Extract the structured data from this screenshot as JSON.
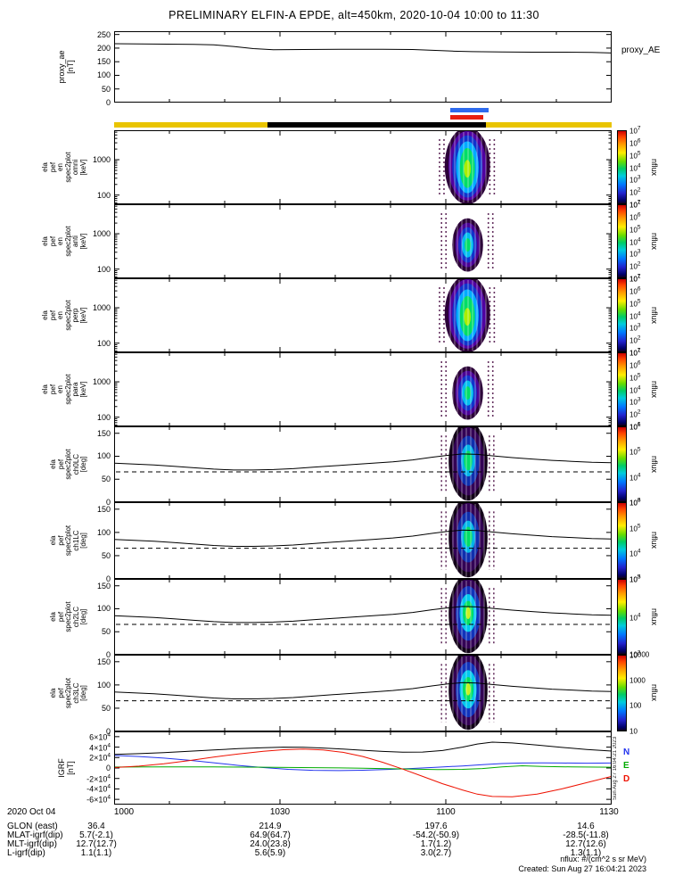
{
  "header": {
    "title": "PRELIMINARY ELFIN-A EPDE, alt=450km, 2020-10-04 10:00 to 11:30"
  },
  "footer": {
    "date": "2020 Oct 04",
    "rows": [
      {
        "label": "GLON (east)",
        "values": [
          "36.4",
          "214.9",
          "197.6",
          "14.6"
        ]
      },
      {
        "label": "MLAT-igrf(dip)",
        "values": [
          "5.7(-2.1)",
          "64.9(64.7)",
          "-54.2(-50.9)",
          "-28.5(-11.8)"
        ]
      },
      {
        "label": "MLT-igrf(dip)",
        "values": [
          "12.7(12.7)",
          "24.0(23.8)",
          "1.7(1.2)",
          "12.7(12.6)"
        ]
      },
      {
        "label": "L-igrf(dip)",
        "values": [
          "1.1(1.1)",
          "5.6(5.9)",
          "3.0(2.7)",
          "1.3(1.1)"
        ]
      }
    ],
    "notes": [
      "nflux: #/(cm^2 s sr MeV)",
      "Created: Sun Aug 27 16:04:21 2023"
    ]
  },
  "chart_data": {
    "type": "multi-panel time-series and spectrograms",
    "title": "PRELIMINARY ELFIN-A EPDE, alt=450km, 2020-10-04 10:00 to 11:30",
    "x_axis": {
      "ticks": [
        "1000",
        "1030",
        "1100",
        "1130"
      ],
      "range_minutes": 90
    },
    "lc_curve": {
      "x": [
        0,
        0.04,
        0.08,
        0.12,
        0.16,
        0.2,
        0.24,
        0.28,
        0.32,
        0.36,
        0.4,
        0.44,
        0.48,
        0.52,
        0.56,
        0.6,
        0.64,
        0.67,
        0.7,
        0.73,
        0.76,
        0.8,
        0.84,
        0.88,
        0.92,
        0.96,
        1
      ],
      "y": [
        85,
        83,
        81,
        78,
        75,
        72,
        70,
        70,
        71,
        73,
        76,
        79,
        82,
        85,
        88,
        92,
        98,
        102,
        105,
        104,
        101,
        97,
        94,
        91,
        89,
        87,
        86
      ],
      "dashed_y": 66
    },
    "panels": [
      {
        "id": "proxy_ae",
        "kind": "line",
        "ylabel_lines": [
          "proxy_ae",
          "[nT]"
        ],
        "right_label": "proxy_AE",
        "yrange": [
          0,
          262
        ],
        "yticks": [
          {
            "v": 0,
            "label": "0"
          },
          {
            "v": 50,
            "label": "50"
          },
          {
            "v": 100,
            "label": "100"
          },
          {
            "v": 150,
            "label": "150"
          },
          {
            "v": 200,
            "label": "200"
          },
          {
            "v": 250,
            "label": "250"
          }
        ],
        "series": [
          {
            "name": "proxy_AE",
            "color": "#000000",
            "x": [
              0,
              0.08,
              0.16,
              0.2,
              0.24,
              0.28,
              0.32,
              0.38,
              0.46,
              0.54,
              0.6,
              0.64,
              0.68,
              0.72,
              0.78,
              0.84,
              0.9,
              0.96,
              1
            ],
            "y": [
              216,
              215,
              214,
              212,
              206,
              198,
              194,
              195,
              196,
              196,
              195,
              192,
              189,
              187,
              186,
              185,
              185,
              184,
              182
            ]
          }
        ]
      },
      {
        "id": "zone-strip",
        "kind": "strip",
        "segments": [
          {
            "x0": 0,
            "x1": 0.308,
            "color": "#e9c400"
          },
          {
            "x0": 0.308,
            "x1": 0.747,
            "color": "#000000"
          },
          {
            "x0": 0.747,
            "x1": 1,
            "color": "#e9c400"
          }
        ],
        "markers": [
          {
            "x0": 0.676,
            "x1": 0.753,
            "color": "#2e6bee",
            "row": 0
          },
          {
            "x0": 0.676,
            "x1": 0.742,
            "color": "#e82010",
            "row": 1
          }
        ]
      },
      {
        "id": "spec-omni",
        "kind": "spec",
        "ylabel_lines": [
          "ela",
          "pef",
          "en",
          "spec2plot",
          "omni",
          "[keV]"
        ],
        "yscale": "log",
        "yrange": [
          55,
          6800
        ],
        "yticks": [
          {
            "v": 100,
            "label": "100"
          },
          {
            "v": 1000,
            "label": "1000"
          }
        ],
        "colorbar": {
          "labels": [
            "10^7",
            "10^6",
            "10^5",
            "10^4",
            "10^3",
            "10^2",
            "10^1"
          ],
          "title": "nflux"
        },
        "burst": {
          "x0": 0.672,
          "x1": 0.748,
          "strength": "strong"
        }
      },
      {
        "id": "spec-anti",
        "kind": "spec",
        "ylabel_lines": [
          "ela",
          "pef",
          "en",
          "spec2plot",
          "anti",
          "[keV]"
        ],
        "yscale": "log",
        "yrange": [
          55,
          6800
        ],
        "yticks": [
          {
            "v": 100,
            "label": "100"
          },
          {
            "v": 1000,
            "label": "1000"
          }
        ],
        "colorbar": {
          "labels": [
            "10^7",
            "10^6",
            "10^5",
            "10^4",
            "10^3",
            "10^2",
            "10^1"
          ],
          "title": "nflux"
        },
        "burst": {
          "x0": 0.676,
          "x1": 0.745,
          "strength": "weak"
        }
      },
      {
        "id": "spec-perp",
        "kind": "spec",
        "ylabel_lines": [
          "ela",
          "pef",
          "en",
          "spec2plot",
          "perp",
          "[keV]"
        ],
        "yscale": "log",
        "yrange": [
          55,
          6800
        ],
        "yticks": [
          {
            "v": 100,
            "label": "100"
          },
          {
            "v": 1000,
            "label": "1000"
          }
        ],
        "colorbar": {
          "labels": [
            "10^7",
            "10^6",
            "10^5",
            "10^4",
            "10^3",
            "10^2",
            "10^1"
          ],
          "title": "nflux"
        },
        "burst": {
          "x0": 0.672,
          "x1": 0.748,
          "strength": "strong"
        }
      },
      {
        "id": "spec-para",
        "kind": "spec",
        "ylabel_lines": [
          "ela",
          "pef",
          "en",
          "spec2plot",
          "para",
          "[keV]"
        ],
        "yscale": "log",
        "yrange": [
          55,
          6800
        ],
        "yticks": [
          {
            "v": 100,
            "label": "100"
          },
          {
            "v": 1000,
            "label": "1000"
          }
        ],
        "colorbar": {
          "labels": [
            "10^7",
            "10^6",
            "10^5",
            "10^4",
            "10^3",
            "10^2",
            "10^1"
          ],
          "title": "nflux"
        },
        "burst": {
          "x0": 0.676,
          "x1": 0.745,
          "strength": "weak"
        }
      },
      {
        "id": "spec-ch0LC",
        "kind": "lc",
        "ylabel_lines": [
          "ela",
          "pef",
          "spec2plot",
          "ch0LC",
          "[deg]"
        ],
        "yrange": [
          0,
          165
        ],
        "yticks": [
          {
            "v": 0,
            "label": "0"
          },
          {
            "v": 50,
            "label": "50"
          },
          {
            "v": 100,
            "label": "100"
          },
          {
            "v": 150,
            "label": "150"
          }
        ],
        "colorbar": {
          "labels": [
            "10^6",
            "10^5",
            "10^4",
            "10^3"
          ],
          "title": "nflux"
        },
        "burst": {
          "x0": 0.676,
          "x1": 0.747,
          "strength": "lc"
        }
      },
      {
        "id": "spec-ch1LC",
        "kind": "lc",
        "ylabel_lines": [
          "ela",
          "pef",
          "spec2plot",
          "ch1LC",
          "[deg]"
        ],
        "yrange": [
          0,
          165
        ],
        "yticks": [
          {
            "v": 0,
            "label": "0"
          },
          {
            "v": 50,
            "label": "50"
          },
          {
            "v": 100,
            "label": "100"
          },
          {
            "v": 150,
            "label": "150"
          }
        ],
        "colorbar": {
          "labels": [
            "10^6",
            "10^5",
            "10^4",
            "10^3"
          ],
          "title": "nflux"
        },
        "burst": {
          "x0": 0.676,
          "x1": 0.747,
          "strength": "lc"
        }
      },
      {
        "id": "spec-ch2LC",
        "kind": "lc",
        "ylabel_lines": [
          "ela",
          "pef",
          "spec2plot",
          "ch2LC",
          "[deg]"
        ],
        "yrange": [
          0,
          165
        ],
        "yticks": [
          {
            "v": 0,
            "label": "0"
          },
          {
            "v": 50,
            "label": "50"
          },
          {
            "v": 100,
            "label": "100"
          },
          {
            "v": 150,
            "label": "150"
          }
        ],
        "colorbar": {
          "labels": [
            "10^5",
            "10^4",
            "10^3"
          ],
          "title": "nflux"
        },
        "burst": {
          "x0": 0.676,
          "x1": 0.747,
          "strength": "lc_bright"
        }
      },
      {
        "id": "spec-ch3LC",
        "kind": "lc",
        "ylabel_lines": [
          "ela",
          "pef",
          "spec2plot",
          "ch3LC",
          "[deg]"
        ],
        "yrange": [
          0,
          165
        ],
        "yticks": [
          {
            "v": 0,
            "label": "0"
          },
          {
            "v": 50,
            "label": "50"
          },
          {
            "v": 100,
            "label": "100"
          },
          {
            "v": 150,
            "label": "150"
          }
        ],
        "colorbar": {
          "labels": [
            "10000",
            "1000",
            "100",
            "10"
          ],
          "title": "nflux"
        },
        "burst": {
          "x0": 0.676,
          "x1": 0.747,
          "strength": "lc_bright"
        }
      },
      {
        "id": "igrf",
        "kind": "line",
        "ylabel_lines": [
          "IGRF",
          "[nT]"
        ],
        "yrange": [
          -70000,
          70000
        ],
        "yticks": [
          {
            "v": 60000,
            "label": "6×10^4"
          },
          {
            "v": 40000,
            "label": "4×10^4"
          },
          {
            "v": 20000,
            "label": "2×10^4"
          },
          {
            "v": 0,
            "label": "0"
          },
          {
            "v": -20000,
            "label": "-2×10^4"
          },
          {
            "v": -40000,
            "label": "-4×10^4"
          },
          {
            "v": -60000,
            "label": "-6×10^4"
          }
        ],
        "right_legend": [
          {
            "label": "N",
            "color": "#2233ee"
          },
          {
            "label": "E",
            "color": "#00aa00"
          },
          {
            "label": "D",
            "color": "#ee1100"
          }
        ],
        "side_note": "Sun Aug 27 16:04:21 2023",
        "series": [
          {
            "name": "B-total",
            "color": "#000000",
            "x": [
              0,
              0.05,
              0.1,
              0.15,
              0.2,
              0.25,
              0.3,
              0.34,
              0.38,
              0.42,
              0.46,
              0.5,
              0.54,
              0.58,
              0.62,
              0.66,
              0.7,
              0.73,
              0.76,
              0.8,
              0.85,
              0.9,
              0.95,
              1
            ],
            "y": [
              26000,
              27500,
              29500,
              32000,
              34500,
              37000,
              39000,
              40000,
              39600,
              38200,
              36200,
              34000,
              31800,
              30200,
              30500,
              33500,
              40000,
              46000,
              49500,
              48000,
              44000,
              39500,
              35500,
              32500
            ]
          },
          {
            "name": "N",
            "color": "#2233ee",
            "x": [
              0,
              0.05,
              0.1,
              0.15,
              0.2,
              0.25,
              0.3,
              0.35,
              0.4,
              0.45,
              0.5,
              0.55,
              0.6,
              0.65,
              0.7,
              0.74,
              0.78,
              0.82,
              0.86,
              0.9,
              0.95,
              1
            ],
            "y": [
              24000,
              22000,
              19000,
              15000,
              10000,
              5000,
              800,
              -2500,
              -4500,
              -5000,
              -4300,
              -2800,
              -800,
              1500,
              4000,
              6500,
              8500,
              9500,
              9800,
              9500,
              9200,
              9500
            ]
          },
          {
            "name": "E",
            "color": "#00aa00",
            "x": [
              0,
              0.1,
              0.2,
              0.3,
              0.4,
              0.5,
              0.55,
              0.6,
              0.65,
              0.7,
              0.74,
              0.78,
              0.82,
              0.86,
              0.92,
              1
            ],
            "y": [
              1800,
              2200,
              2100,
              1500,
              600,
              -400,
              -1200,
              -2200,
              -3000,
              -2600,
              -1000,
              2200,
              4200,
              3000,
              2000,
              1500
            ]
          },
          {
            "name": "D",
            "color": "#ee1100",
            "x": [
              0,
              0.05,
              0.1,
              0.15,
              0.2,
              0.25,
              0.3,
              0.34,
              0.38,
              0.42,
              0.46,
              0.5,
              0.54,
              0.58,
              0.62,
              0.66,
              0.7,
              0.73,
              0.76,
              0.8,
              0.85,
              0.9,
              0.95,
              1
            ],
            "y": [
              800,
              3500,
              8000,
              14000,
              21000,
              27000,
              32000,
              35000,
              36200,
              34500,
              30000,
              22000,
              11000,
              -2000,
              -16000,
              -30000,
              -42000,
              -50000,
              -54500,
              -55000,
              -50000,
              -40000,
              -28000,
              -16000
            ]
          }
        ]
      }
    ]
  }
}
